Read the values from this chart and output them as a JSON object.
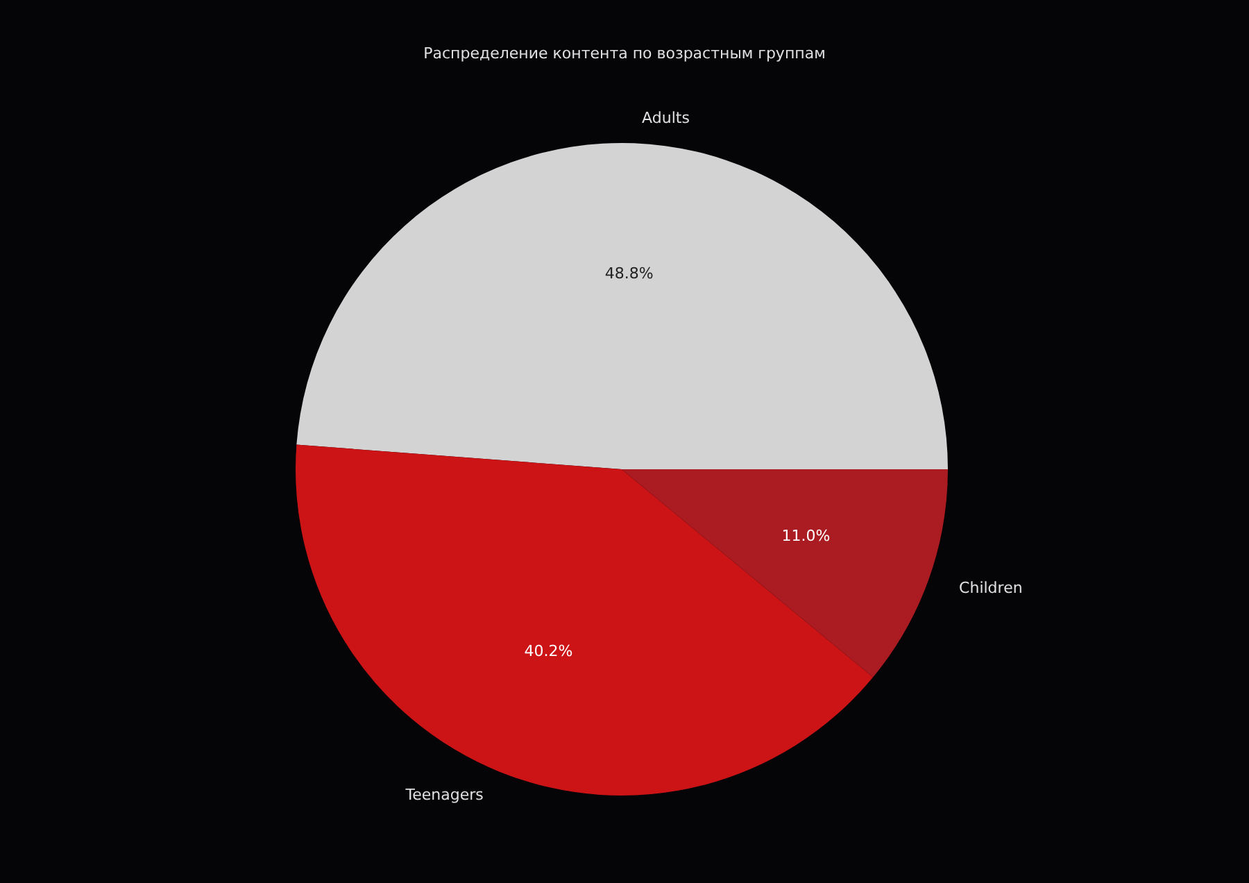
{
  "chart_data": {
    "type": "pie",
    "title": "Распределение контента по возрастным группам",
    "categories": [
      "Adults",
      "Teenagers",
      "Children"
    ],
    "values": [
      48.8,
      40.2,
      11.0
    ],
    "colors": [
      "#d3d3d3",
      "#cc1417",
      "#ab1c22"
    ],
    "value_labels": [
      "48.8%",
      "40.2%",
      "11.0%"
    ],
    "legend": false
  }
}
